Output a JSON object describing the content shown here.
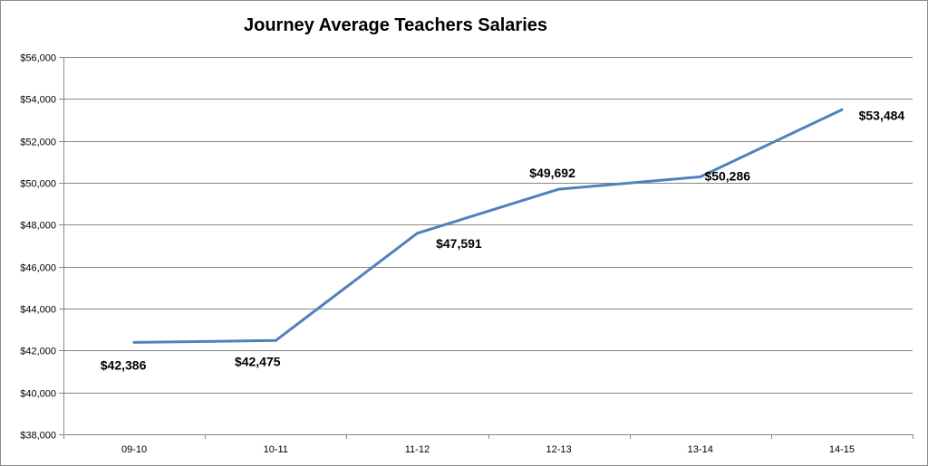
{
  "chart_data": {
    "type": "line",
    "title": "Journey Average Teachers Salaries",
    "xlabel": "",
    "ylabel": "",
    "categories": [
      "09-10",
      "10-11",
      "11-12",
      "12-13",
      "13-14",
      "14-15"
    ],
    "series": [
      {
        "values": [
          42386,
          42475,
          47591,
          49692,
          50286,
          53484
        ],
        "data_labels": [
          "$42,386",
          "$42,475",
          "$47,591",
          "$49,692",
          "$50,286",
          "$53,484"
        ],
        "color": "#4f81bd"
      }
    ],
    "ylim": [
      38000,
      56000
    ],
    "y_ticks": [
      38000,
      40000,
      42000,
      44000,
      46000,
      48000,
      50000,
      52000,
      54000,
      56000
    ],
    "y_tick_labels": [
      "$38,000",
      "$40,000",
      "$42,000",
      "$44,000",
      "$46,000",
      "$48,000",
      "$50,000",
      "$52,000",
      "$54,000",
      "$56,000"
    ],
    "grid": true,
    "legend": "none"
  },
  "colors": {
    "line": "#4f81bd",
    "grid": "#878787",
    "axis": "#878787"
  }
}
